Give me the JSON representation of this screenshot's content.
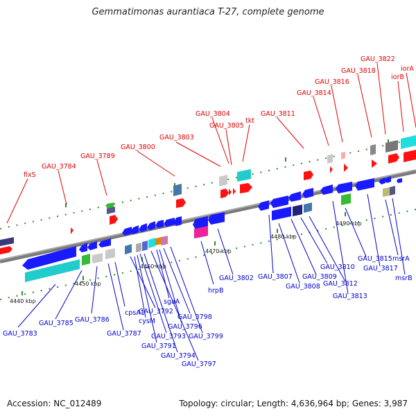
{
  "title": "Gemmatimonas aurantiaca T-27, complete genome",
  "footer": {
    "accession": "Accession: NC_012489",
    "summary": "Topology: circular; Length: 4,636,964 bp; Genes: 3,987"
  },
  "colors": {
    "forward_label": "#dd0000",
    "reverse_label": "#0000cc",
    "forward_gene": "#ff1111",
    "reverse_gene": "#1a1aff",
    "axis": "#888888",
    "tick": "#2a8a2a"
  },
  "kbp_labels": [
    "4440 kbp",
    "4450 kbp",
    "4460 kbp",
    "4470 kbp",
    "4480 kbp",
    "4490 kbp"
  ],
  "forward_labels": [
    "fixS",
    "GAU_3784",
    "GAU_3789",
    "GAU_3800",
    "GAU_3803",
    "GAU_3804",
    "GAU_3805",
    "tkt",
    "GAU_3811",
    "GAU_3814",
    "GAU_3816",
    "GAU_3818",
    "GAU_3822",
    "iorB",
    "iorA"
  ],
  "reverse_labels": [
    "GAU_3783",
    "GAU_3785",
    "GAU_3786",
    "GAU_3787",
    "cpsA1",
    "GAU_3792",
    "cysM",
    "GAU_3793",
    "GAU_3791",
    "GAU_3794",
    "GAU_3797",
    "sgaA",
    "GAU_3798",
    "GAU_3796",
    "GAU_3799",
    "hrpB",
    "GAU_3802",
    "GAU_3807",
    "GAU_3808",
    "GAU_3809",
    "GAU_3810",
    "GAU_3812",
    "GAU_3813",
    "GAU_3815",
    "GAU_3817",
    "msrA",
    "msrB"
  ]
}
